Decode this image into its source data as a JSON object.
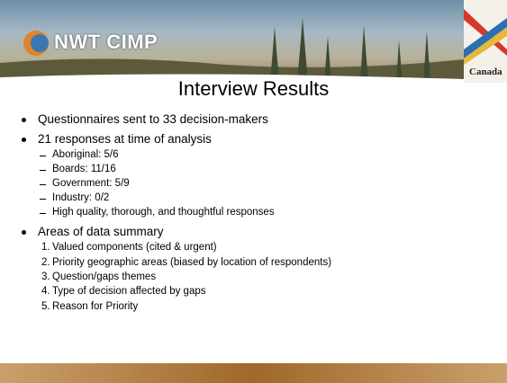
{
  "header": {
    "logo": "NWT CIMP",
    "wordmark": "Canada"
  },
  "title": "Interview Results",
  "bullets": [
    {
      "text": "Questionnaires sent to 33 decision-makers"
    },
    {
      "text": "21 responses at time of analysis",
      "items": [
        "Aboriginal: 5/6",
        "Boards: 11/16",
        "Government: 5/9",
        "Industry: 0/2",
        "High quality, thorough, and thoughtful responses"
      ]
    },
    {
      "text": "Areas of data summary",
      "items": [
        {
          "marker": "1.",
          "text": "Valued components (cited & urgent)"
        },
        {
          "marker": "2.",
          "text": "Priority geographic areas (biased by location of respondents)"
        },
        {
          "marker": "3.",
          "text": "Question/gaps themes"
        },
        {
          "marker": "4.",
          "text": "Type of decision affected by gaps"
        },
        {
          "marker": "5.",
          "text": "Reason for Priority"
        }
      ]
    }
  ]
}
